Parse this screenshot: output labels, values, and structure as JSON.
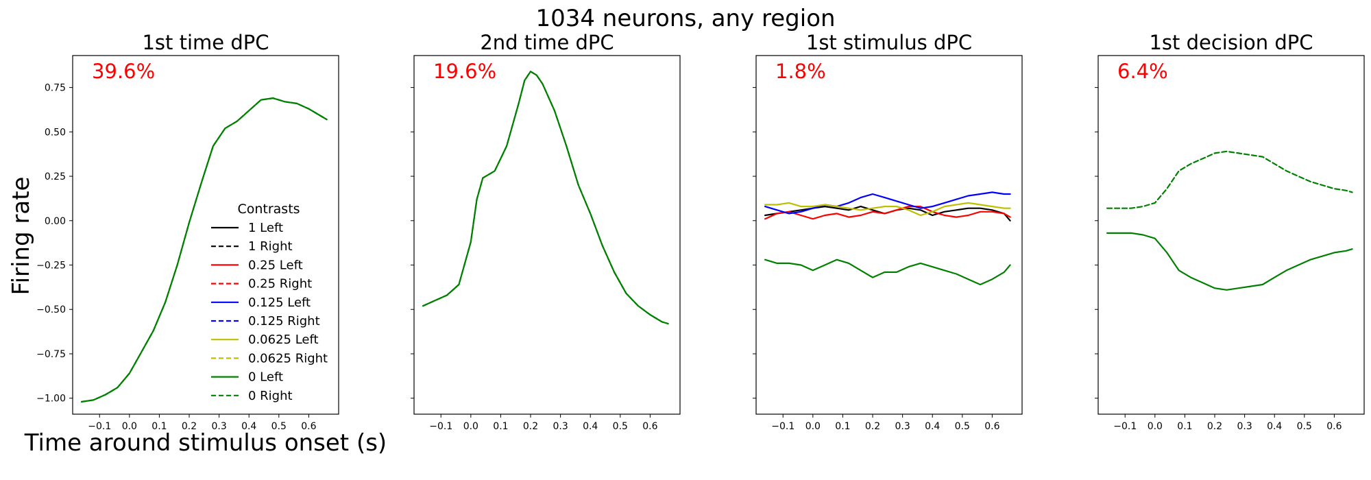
{
  "figure": {
    "title": "1034 neurons, any region",
    "ylabel": "Firing rate",
    "xlabel": "Time around stimulus onset (s)"
  },
  "legend": {
    "title": "Contrasts",
    "entries": [
      {
        "label": "1 Left",
        "color": "#000000",
        "dash": false
      },
      {
        "label": "1 Right",
        "color": "#000000",
        "dash": true
      },
      {
        "label": "0.25 Left",
        "color": "#ff0000",
        "dash": false
      },
      {
        "label": "0.25 Right",
        "color": "#ff0000",
        "dash": true
      },
      {
        "label": "0.125 Left",
        "color": "#0000ff",
        "dash": false
      },
      {
        "label": "0.125 Right",
        "color": "#0000ff",
        "dash": true
      },
      {
        "label": "0.0625 Left",
        "color": "#bfbf00",
        "dash": false
      },
      {
        "label": "0.0625 Right",
        "color": "#bfbf00",
        "dash": true
      },
      {
        "label": "0 Left",
        "color": "#008000",
        "dash": false
      },
      {
        "label": "0 Right",
        "color": "#008000",
        "dash": true
      }
    ]
  },
  "colors": {
    "annotation": "#ff0000"
  },
  "chart_data": [
    {
      "type": "line",
      "title": "1st time dPC",
      "annotation": "39.6%",
      "xlim": [
        -0.19,
        0.7
      ],
      "ylim": [
        -1.09,
        0.93
      ],
      "xticks": [
        -0.1,
        0.0,
        0.1,
        0.2,
        0.3,
        0.4,
        0.5,
        0.6
      ],
      "xtick_labels": [
        "−0.1",
        "0.0",
        "0.1",
        "0.2",
        "0.3",
        "0.4",
        "0.5",
        "0.6"
      ],
      "yticks": [
        -1.0,
        -0.75,
        -0.5,
        -0.25,
        0.0,
        0.25,
        0.5,
        0.75
      ],
      "ytick_labels": [
        "−1.00",
        "−0.75",
        "−0.50",
        "−0.25",
        "0.00",
        "0.25",
        "0.50",
        "0.75"
      ],
      "x": [
        -0.16,
        -0.12,
        -0.08,
        -0.04,
        0.0,
        0.04,
        0.08,
        0.12,
        0.16,
        0.2,
        0.24,
        0.28,
        0.32,
        0.36,
        0.4,
        0.44,
        0.48,
        0.52,
        0.56,
        0.6,
        0.64,
        0.66
      ],
      "series": [
        {
          "name": "0 Left",
          "color": "#008000",
          "dash": false,
          "values": [
            -1.02,
            -1.01,
            -0.98,
            -0.94,
            -0.86,
            -0.74,
            -0.62,
            -0.46,
            -0.25,
            -0.01,
            0.21,
            0.42,
            0.52,
            0.56,
            0.62,
            0.68,
            0.69,
            0.67,
            0.66,
            0.63,
            0.59,
            0.57
          ]
        },
        {
          "name": "0 Right",
          "color": "#008000",
          "dash": true,
          "values": [
            -1.02,
            -1.01,
            -0.98,
            -0.94,
            -0.86,
            -0.74,
            -0.62,
            -0.46,
            -0.25,
            -0.01,
            0.21,
            0.42,
            0.52,
            0.56,
            0.62,
            0.68,
            0.69,
            0.67,
            0.66,
            0.63,
            0.59,
            0.57
          ]
        }
      ]
    },
    {
      "type": "line",
      "title": "2nd time dPC",
      "annotation": "19.6%",
      "xlim": [
        -0.19,
        0.7
      ],
      "ylim": [
        -1.09,
        0.93
      ],
      "xticks": [
        -0.1,
        0.0,
        0.1,
        0.2,
        0.3,
        0.4,
        0.5,
        0.6
      ],
      "xtick_labels": [
        "−0.1",
        "0.0",
        "0.1",
        "0.2",
        "0.3",
        "0.4",
        "0.5",
        "0.6"
      ],
      "x": [
        -0.16,
        -0.12,
        -0.08,
        -0.04,
        0.0,
        0.02,
        0.04,
        0.08,
        0.12,
        0.16,
        0.18,
        0.2,
        0.22,
        0.24,
        0.28,
        0.32,
        0.36,
        0.4,
        0.44,
        0.48,
        0.52,
        0.56,
        0.6,
        0.64,
        0.66
      ],
      "series": [
        {
          "name": "0 Left",
          "color": "#008000",
          "dash": false,
          "values": [
            -0.48,
            -0.45,
            -0.42,
            -0.36,
            -0.12,
            0.12,
            0.24,
            0.28,
            0.42,
            0.66,
            0.79,
            0.84,
            0.82,
            0.77,
            0.62,
            0.42,
            0.2,
            0.04,
            -0.14,
            -0.29,
            -0.41,
            -0.48,
            -0.53,
            -0.57,
            -0.58
          ]
        },
        {
          "name": "0 Right",
          "color": "#008000",
          "dash": true,
          "values": [
            -0.48,
            -0.45,
            -0.42,
            -0.36,
            -0.12,
            0.12,
            0.24,
            0.28,
            0.42,
            0.66,
            0.79,
            0.84,
            0.82,
            0.77,
            0.62,
            0.42,
            0.2,
            0.04,
            -0.14,
            -0.29,
            -0.41,
            -0.48,
            -0.53,
            -0.57,
            -0.58
          ]
        }
      ]
    },
    {
      "type": "line",
      "title": "1st stimulus dPC",
      "annotation": "1.8%",
      "xlim": [
        -0.19,
        0.7
      ],
      "ylim": [
        -1.09,
        0.93
      ],
      "xticks": [
        -0.1,
        0.0,
        0.1,
        0.2,
        0.3,
        0.4,
        0.5,
        0.6
      ],
      "xtick_labels": [
        "−0.1",
        "0.0",
        "0.1",
        "0.2",
        "0.3",
        "0.4",
        "0.5",
        "0.6"
      ],
      "x": [
        -0.16,
        -0.12,
        -0.08,
        -0.04,
        0.0,
        0.04,
        0.08,
        0.12,
        0.16,
        0.2,
        0.24,
        0.28,
        0.32,
        0.36,
        0.4,
        0.44,
        0.48,
        0.52,
        0.56,
        0.6,
        0.64,
        0.66
      ],
      "series": [
        {
          "name": "1 Left",
          "color": "#000000",
          "dash": false,
          "values": [
            0.03,
            0.04,
            0.05,
            0.06,
            0.07,
            0.08,
            0.07,
            0.06,
            0.08,
            0.06,
            0.04,
            0.06,
            0.07,
            0.06,
            0.03,
            0.05,
            0.06,
            0.07,
            0.07,
            0.06,
            0.04,
            0.0
          ]
        },
        {
          "name": "0.25 Left",
          "color": "#ff0000",
          "dash": false,
          "values": [
            0.01,
            0.04,
            0.05,
            0.03,
            0.01,
            0.03,
            0.04,
            0.02,
            0.03,
            0.05,
            0.04,
            0.06,
            0.08,
            0.08,
            0.05,
            0.03,
            0.02,
            0.03,
            0.05,
            0.05,
            0.04,
            0.02
          ]
        },
        {
          "name": "0.125 Left",
          "color": "#0000ff",
          "dash": false,
          "values": [
            0.08,
            0.06,
            0.04,
            0.05,
            0.07,
            0.09,
            0.08,
            0.1,
            0.13,
            0.15,
            0.13,
            0.11,
            0.09,
            0.07,
            0.08,
            0.1,
            0.12,
            0.14,
            0.15,
            0.16,
            0.15,
            0.15
          ]
        },
        {
          "name": "0.0625 Left",
          "color": "#bfbf00",
          "dash": false,
          "values": [
            0.09,
            0.09,
            0.1,
            0.08,
            0.08,
            0.09,
            0.08,
            0.07,
            0.06,
            0.07,
            0.08,
            0.08,
            0.06,
            0.03,
            0.05,
            0.08,
            0.09,
            0.1,
            0.09,
            0.08,
            0.07,
            0.07
          ]
        },
        {
          "name": "0 Left",
          "color": "#008000",
          "dash": false,
          "values": [
            -0.22,
            -0.24,
            -0.24,
            -0.25,
            -0.28,
            -0.25,
            -0.22,
            -0.24,
            -0.28,
            -0.32,
            -0.29,
            -0.29,
            -0.26,
            -0.24,
            -0.26,
            -0.28,
            -0.3,
            -0.33,
            -0.36,
            -0.33,
            -0.29,
            -0.25
          ]
        }
      ]
    },
    {
      "type": "line",
      "title": "1st decision dPC",
      "annotation": "6.4%",
      "xlim": [
        -0.19,
        0.7
      ],
      "ylim": [
        -1.09,
        0.93
      ],
      "xticks": [
        -0.1,
        0.0,
        0.1,
        0.2,
        0.3,
        0.4,
        0.5,
        0.6
      ],
      "xtick_labels": [
        "−0.1",
        "0.0",
        "0.1",
        "0.2",
        "0.3",
        "0.4",
        "0.5",
        "0.6"
      ],
      "x": [
        -0.16,
        -0.12,
        -0.08,
        -0.04,
        0.0,
        0.04,
        0.08,
        0.12,
        0.16,
        0.2,
        0.24,
        0.28,
        0.32,
        0.36,
        0.4,
        0.44,
        0.48,
        0.52,
        0.56,
        0.6,
        0.64,
        0.66
      ],
      "series": [
        {
          "name": "0 Right",
          "color": "#008000",
          "dash": true,
          "values": [
            0.07,
            0.07,
            0.07,
            0.08,
            0.1,
            0.18,
            0.28,
            0.32,
            0.35,
            0.38,
            0.39,
            0.38,
            0.37,
            0.36,
            0.32,
            0.28,
            0.25,
            0.22,
            0.2,
            0.18,
            0.17,
            0.16
          ]
        },
        {
          "name": "0 Left",
          "color": "#008000",
          "dash": false,
          "values": [
            -0.07,
            -0.07,
            -0.07,
            -0.08,
            -0.1,
            -0.18,
            -0.28,
            -0.32,
            -0.35,
            -0.38,
            -0.39,
            -0.38,
            -0.37,
            -0.36,
            -0.32,
            -0.28,
            -0.25,
            -0.22,
            -0.2,
            -0.18,
            -0.17,
            -0.16
          ]
        }
      ]
    }
  ]
}
